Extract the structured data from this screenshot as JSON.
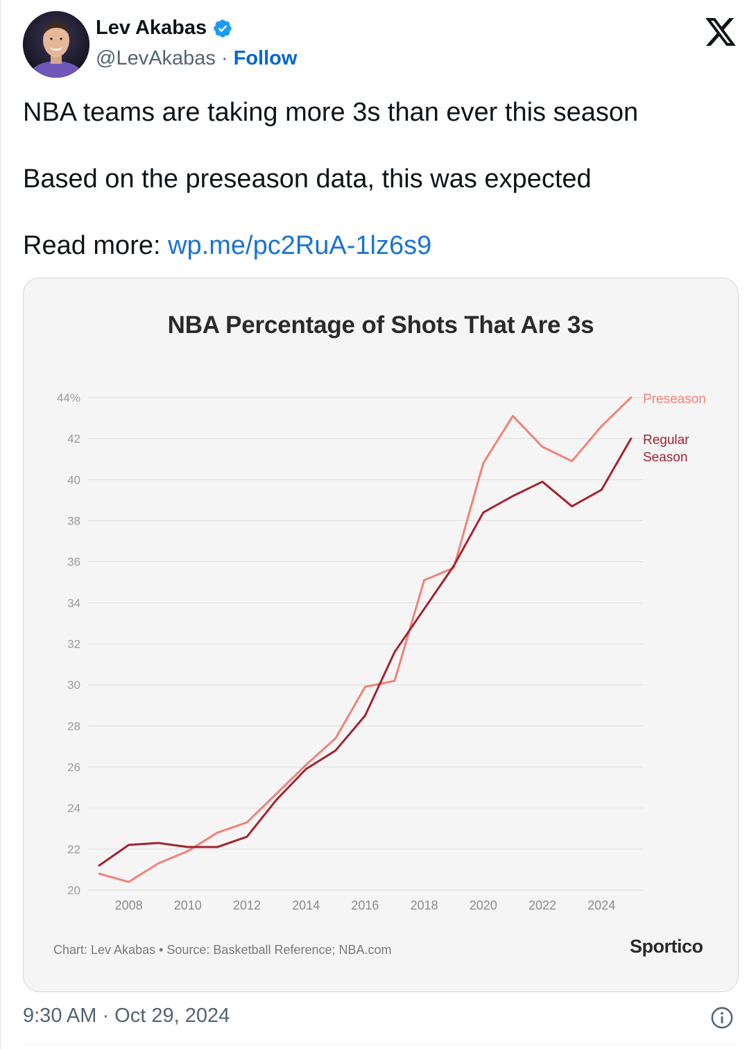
{
  "author": {
    "name": "Lev Akabas",
    "handle": "@LevAkabas",
    "separator": "·",
    "follow_label": "Follow",
    "avatar_icon": "avatar-photo"
  },
  "tweet": {
    "line1": "NBA teams are taking more 3s than ever this season",
    "line2": "Based on the preseason data, this was expected",
    "read_more_prefix": "Read more: ",
    "link_text": "wp.me/pc2RuA-1lz6s9",
    "timestamp": "9:30 AM · Oct 29, 2024"
  },
  "card": {
    "footnote": "Chart: Lev Akabas • Source: Basketball Reference; NBA.com",
    "brand": "Sportico"
  },
  "colors": {
    "preseason": "#f0827a",
    "regular_season": "#a3232f",
    "link": "#1b73d2",
    "follow": "#0066d4",
    "verified": "#1d9bf0"
  },
  "chart_data": {
    "type": "line",
    "title": "NBA Percentage of Shots That Are 3s",
    "xlabel": "",
    "ylabel": "",
    "x": [
      2007,
      2008,
      2009,
      2010,
      2011,
      2012,
      2013,
      2014,
      2015,
      2016,
      2017,
      2018,
      2019,
      2020,
      2021,
      2022,
      2023,
      2024,
      2025
    ],
    "x_ticks": [
      2008,
      2010,
      2012,
      2014,
      2016,
      2018,
      2020,
      2022,
      2024
    ],
    "y_ticks": [
      "44%",
      "42",
      "40",
      "38",
      "36",
      "34",
      "32",
      "30",
      "28",
      "26",
      "24",
      "22",
      "20"
    ],
    "ylim": [
      20,
      44
    ],
    "grid": "horizontal",
    "series": [
      {
        "name": "Preseason",
        "legend_lines": [
          "Preseason"
        ],
        "values": [
          20.8,
          20.4,
          21.3,
          21.9,
          22.8,
          23.3,
          24.7,
          26.1,
          27.4,
          29.9,
          30.2,
          35.1,
          35.7,
          40.8,
          43.1,
          41.6,
          40.9,
          42.6,
          44.0
        ]
      },
      {
        "name": "Regular Season",
        "legend_lines": [
          "Regular",
          "Season"
        ],
        "values": [
          21.2,
          22.2,
          22.3,
          22.1,
          22.1,
          22.6,
          24.4,
          25.9,
          26.8,
          28.5,
          31.6,
          33.7,
          35.8,
          38.4,
          39.2,
          39.9,
          38.7,
          39.5,
          42.0
        ]
      }
    ],
    "legend": "right, at line ends"
  }
}
